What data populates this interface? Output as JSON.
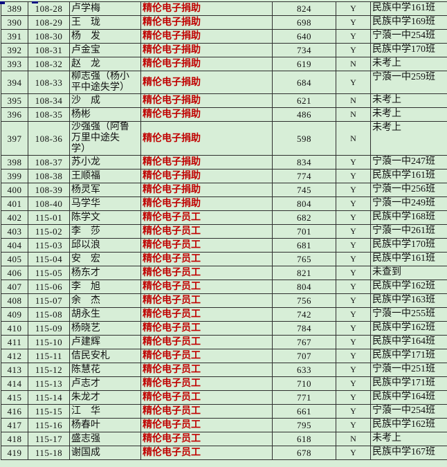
{
  "colors": {
    "background": "#d7eed7",
    "grid": "#2e2e2e",
    "sponsor_text": "#c00000",
    "selection": "#000080"
  },
  "table": {
    "rows": [
      {
        "seq": "389",
        "id": "108-28",
        "name": "卢学梅",
        "sponsor": "精伦电子捐助",
        "score": "824",
        "pass": "Y",
        "school": "民族中学161班"
      },
      {
        "seq": "390",
        "id": "108-29",
        "name": "王　珑",
        "sponsor": "精伦电子捐助",
        "score": "698",
        "pass": "Y",
        "school": "民族中学169班"
      },
      {
        "seq": "391",
        "id": "108-30",
        "name": "杨　发",
        "sponsor": "精伦电子捐助",
        "score": "640",
        "pass": "Y",
        "school": "宁蒗一中254班"
      },
      {
        "seq": "392",
        "id": "108-31",
        "name": "卢金宝",
        "sponsor": "精伦电子捐助",
        "score": "734",
        "pass": "Y",
        "school": "民族中学170班"
      },
      {
        "seq": "393",
        "id": "108-32",
        "name": "赵　龙",
        "sponsor": "精伦电子捐助",
        "score": "619",
        "pass": "N",
        "school": "未考上"
      },
      {
        "seq": "394",
        "id": "108-33",
        "name": "柳志强（杨小\n平中途失学）",
        "sponsor": "精伦电子捐助",
        "score": "684",
        "pass": "Y",
        "school": "宁蒗一中259班"
      },
      {
        "seq": "395",
        "id": "108-34",
        "name": "沙　成",
        "sponsor": "精伦电子捐助",
        "score": "621",
        "pass": "N",
        "school": "未考上"
      },
      {
        "seq": "396",
        "id": "108-35",
        "name": "杨彬",
        "sponsor": "精伦电子捐助",
        "score": "486",
        "pass": "N",
        "school": "未考上"
      },
      {
        "seq": "397",
        "id": "108-36",
        "name": "沙强强（阿鲁\n万里中途失\n学）",
        "sponsor": "精伦电子捐助",
        "score": "598",
        "pass": "N",
        "school": "未考上"
      },
      {
        "seq": "398",
        "id": "108-37",
        "name": "苏小龙",
        "sponsor": "精伦电子捐助",
        "score": "834",
        "pass": "Y",
        "school": "宁蒗一中247班"
      },
      {
        "seq": "399",
        "id": "108-38",
        "name": "王顺福",
        "sponsor": "精伦电子捐助",
        "score": "774",
        "pass": "Y",
        "school": "民族中学161班"
      },
      {
        "seq": "400",
        "id": "108-39",
        "name": "杨灵军",
        "sponsor": "精伦电子捐助",
        "score": "745",
        "pass": "Y",
        "school": "宁蒗一中256班"
      },
      {
        "seq": "401",
        "id": "108-40",
        "name": "马学华",
        "sponsor": "精伦电子捐助",
        "score": "804",
        "pass": "Y",
        "school": "宁蒗一中249班"
      },
      {
        "seq": "402",
        "id": "115-01",
        "name": "陈学文",
        "sponsor": "精伦电子员工",
        "score": "682",
        "pass": "Y",
        "school": "民族中学168班"
      },
      {
        "seq": "403",
        "id": "115-02",
        "name": "李　莎",
        "sponsor": "精伦电子员工",
        "score": "701",
        "pass": "Y",
        "school": "宁蒗一中261班"
      },
      {
        "seq": "404",
        "id": "115-03",
        "name": "邱以浪",
        "sponsor": "精伦电子员工",
        "score": "681",
        "pass": "Y",
        "school": "民族中学170班"
      },
      {
        "seq": "405",
        "id": "115-04",
        "name": "安　宏",
        "sponsor": "精伦电子员工",
        "score": "765",
        "pass": "Y",
        "school": "民族中学161班"
      },
      {
        "seq": "406",
        "id": "115-05",
        "name": "杨东才",
        "sponsor": "精伦电子员工",
        "score": "821",
        "pass": "Y",
        "school": "未查到"
      },
      {
        "seq": "407",
        "id": "115-06",
        "name": "李　旭",
        "sponsor": "精伦电子员工",
        "score": "804",
        "pass": "Y",
        "school": "民族中学162班"
      },
      {
        "seq": "408",
        "id": "115-07",
        "name": "余　杰",
        "sponsor": "精伦电子员工",
        "score": "756",
        "pass": "Y",
        "school": "民族中学163班"
      },
      {
        "seq": "409",
        "id": "115-08",
        "name": "胡永生",
        "sponsor": "精伦电子员工",
        "score": "742",
        "pass": "Y",
        "school": "宁蒗一中255班"
      },
      {
        "seq": "410",
        "id": "115-09",
        "name": "杨晓艺",
        "sponsor": "精伦电子员工",
        "score": "784",
        "pass": "Y",
        "school": "民族中学162班"
      },
      {
        "seq": "411",
        "id": "115-10",
        "name": "卢建辉",
        "sponsor": "精伦电子员工",
        "score": "767",
        "pass": "Y",
        "school": "民族中学164班"
      },
      {
        "seq": "412",
        "id": "115-11",
        "name": "佶民安札",
        "sponsor": "精伦电子员工",
        "score": "707",
        "pass": "Y",
        "school": "民族中学171班"
      },
      {
        "seq": "413",
        "id": "115-12",
        "name": "陈慧花",
        "sponsor": "精伦电子员工",
        "score": "633",
        "pass": "Y",
        "school": "宁蒗一中251班"
      },
      {
        "seq": "414",
        "id": "115-13",
        "name": "卢志才",
        "sponsor": "精伦电子员工",
        "score": "710",
        "pass": "Y",
        "school": "民族中学171班"
      },
      {
        "seq": "415",
        "id": "115-14",
        "name": "朱龙才",
        "sponsor": "精伦电子员工",
        "score": "771",
        "pass": "Y",
        "school": "民族中学164班"
      },
      {
        "seq": "416",
        "id": "115-15",
        "name": "江　华",
        "sponsor": "精伦电子员工",
        "score": "661",
        "pass": "Y",
        "school": "宁蒗一中254班"
      },
      {
        "seq": "417",
        "id": "115-16",
        "name": "杨春叶",
        "sponsor": "精伦电子员工",
        "score": "795",
        "pass": "Y",
        "school": "民族中学162班"
      },
      {
        "seq": "418",
        "id": "115-17",
        "name": "盛志强",
        "sponsor": "精伦电子员工",
        "score": "618",
        "pass": "N",
        "school": "未考上"
      },
      {
        "seq": "419",
        "id": "115-18",
        "name": "谢国成",
        "sponsor": "精伦电子员工",
        "score": "678",
        "pass": "Y",
        "school": "民族中学167班"
      }
    ]
  }
}
